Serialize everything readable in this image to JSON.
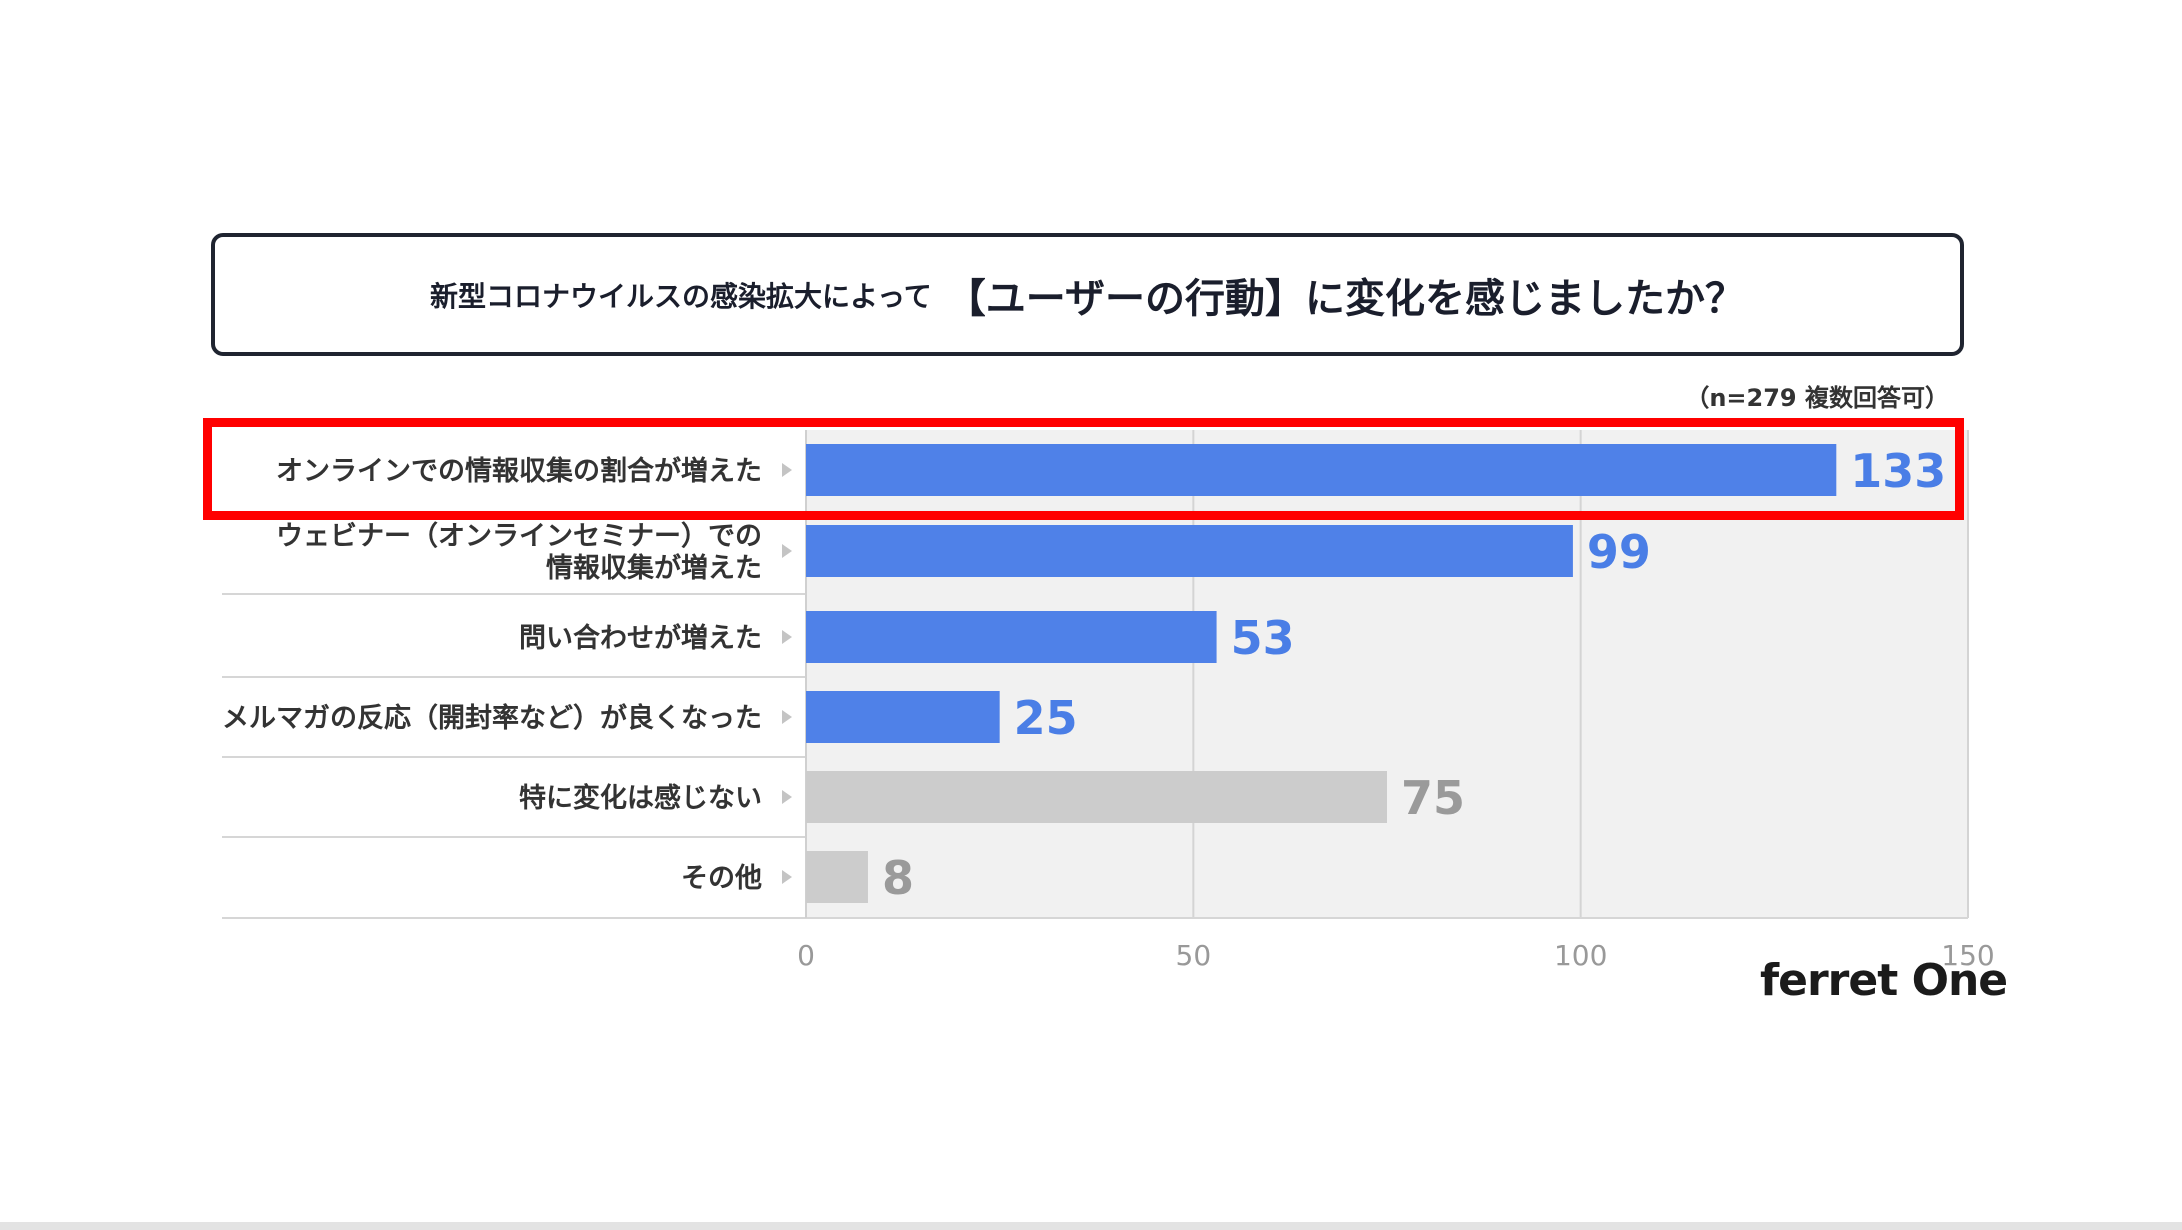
{
  "title": {
    "small": "新型コロナウイルスの感染拡大によって",
    "large": "【ユーザーの行動】に変化を感じましたか？"
  },
  "note": "（n=279 複数回答可）",
  "logo": "ferret One",
  "colors": {
    "bar_highlight": "#4f81e8",
    "bar_neutral": "#cccccc",
    "value_highlight": "#4a7ee6",
    "value_neutral": "#9a9a9a",
    "plot_bg": "#f1f1f1",
    "highlight_border": "#ff0000"
  },
  "chart_data": {
    "type": "bar",
    "orientation": "horizontal",
    "categories": [
      [
        "オンラインでの情報収集の割合が増えた"
      ],
      [
        "ウェビナー（オンラインセミナー）での",
        "情報収集が増えた"
      ],
      [
        "問い合わせが増えた"
      ],
      [
        "メルマガの反応（開封率など）が良くなった"
      ],
      [
        "特に変化は感じない"
      ],
      [
        "その他"
      ]
    ],
    "values": [
      133,
      99,
      53,
      25,
      75,
      8
    ],
    "value_labels": [
      "133",
      "99",
      "53",
      "25",
      "75",
      "8"
    ],
    "bar_style": [
      "highlight",
      "highlight",
      "highlight",
      "highlight",
      "neutral",
      "neutral"
    ],
    "xlim": [
      0,
      150
    ],
    "xticks": [
      0,
      50,
      100,
      150
    ],
    "xtick_labels": [
      "0",
      "50",
      "100",
      "150"
    ],
    "grid": true,
    "highlighted_category_index": 0
  }
}
